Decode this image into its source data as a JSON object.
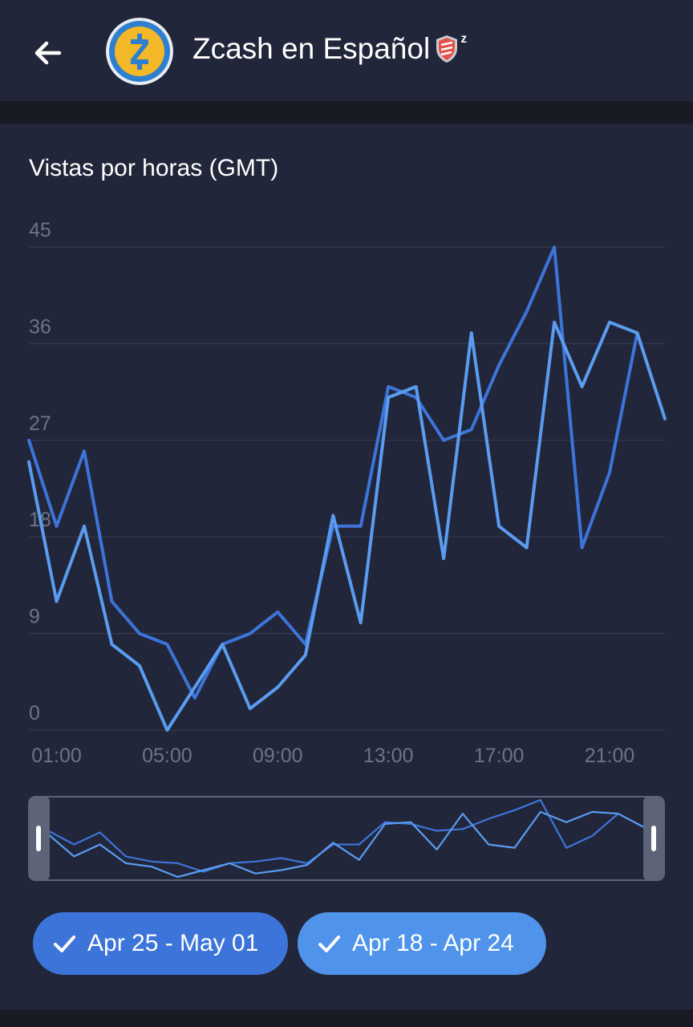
{
  "header": {
    "channel_name": "Zcash en Español",
    "badge_suffix": "ᶻ",
    "avatar_letter": "Z"
  },
  "chart_title": "Vistas por horas (GMT)",
  "legend": [
    {
      "label": "Apr 25 - May 01",
      "color": "#3d74d9"
    },
    {
      "label": "Apr 18 - Apr 24",
      "color": "#4f94ea"
    }
  ],
  "chart_data": {
    "type": "line",
    "title": "Vistas por horas (GMT)",
    "xlabel": "",
    "ylabel": "",
    "x": [
      0,
      1,
      2,
      3,
      4,
      5,
      6,
      7,
      8,
      9,
      10,
      11,
      12,
      13,
      14,
      15,
      16,
      17,
      18,
      19,
      20,
      21,
      22,
      23
    ],
    "x_tick_labels": [
      "01:00",
      "05:00",
      "09:00",
      "13:00",
      "17:00",
      "21:00"
    ],
    "x_tick_positions": [
      1,
      5,
      9,
      13,
      17,
      21
    ],
    "y_ticks": [
      0,
      9,
      18,
      27,
      36,
      45
    ],
    "ylim": [
      0,
      45
    ],
    "grid": true,
    "series": [
      {
        "name": "Apr 25 - May 01",
        "color": "#3d74d9",
        "values": [
          27,
          19,
          26,
          12,
          9,
          8,
          3,
          8,
          9,
          11,
          8,
          19,
          19,
          32,
          31,
          27,
          28,
          34,
          39,
          45,
          17,
          24,
          37,
          null
        ]
      },
      {
        "name": "Apr 18 - Apr 24",
        "color": "#5a9cf0",
        "values": [
          25,
          12,
          19,
          8,
          6,
          0,
          4,
          8,
          2,
          4,
          7,
          20,
          10,
          31,
          32,
          16,
          37,
          19,
          17,
          38,
          32,
          38,
          37,
          29
        ]
      }
    ]
  }
}
